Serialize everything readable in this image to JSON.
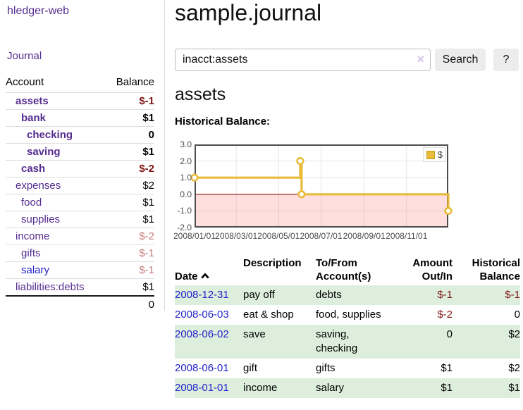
{
  "colors": {
    "link-purple": "#552d90",
    "link-blue": "#2323cc",
    "neg-dark": "#7f1414",
    "neg-light": "#c87c7c",
    "row-green": "#ddeedd",
    "chart-gold": "#e8bb39",
    "chart-pink-base": "#ff4646",
    "zero-red": "#8b1414",
    "grid-gray": "#e6e6e6",
    "chart-border": "#4d4d4d",
    "button-gray": "#ececec"
  },
  "sidebar": {
    "brand": "hledger-web",
    "nav": [
      {
        "label": "Journal"
      }
    ],
    "table_headers": {
      "account": "Account",
      "balance": "Balance"
    },
    "accounts": [
      {
        "name": "assets",
        "balance": "$-1",
        "level": 1,
        "bold": true,
        "neg": "dark"
      },
      {
        "name": "bank",
        "balance": "$1",
        "level": 2,
        "bold": true,
        "neg": ""
      },
      {
        "name": "checking",
        "balance": "0",
        "level": 3,
        "bold": true,
        "neg": ""
      },
      {
        "name": "saving",
        "balance": "$1",
        "level": 3,
        "bold": true,
        "neg": ""
      },
      {
        "name": "cash",
        "balance": "$-2",
        "level": 2,
        "bold": true,
        "neg": "dark"
      },
      {
        "name": "expenses",
        "balance": "$2",
        "level": 1,
        "bold": false,
        "neg": ""
      },
      {
        "name": "food",
        "balance": "$1",
        "level": 2,
        "bold": false,
        "neg": ""
      },
      {
        "name": "supplies",
        "balance": "$1",
        "level": 2,
        "bold": false,
        "neg": ""
      },
      {
        "name": "income",
        "balance": "$-2",
        "level": 1,
        "bold": false,
        "neg": "light"
      },
      {
        "name": "gifts",
        "balance": "$-1",
        "level": 2,
        "bold": false,
        "neg": "light"
      },
      {
        "name": "salary",
        "balance": "$-1",
        "level": 2,
        "bold": false,
        "neg": "light",
        "link": "blue"
      },
      {
        "name": "liabilities:debts",
        "balance": "$1",
        "level": 1,
        "bold": false,
        "neg": ""
      }
    ],
    "total": "0"
  },
  "header": {
    "title": "sample.journal"
  },
  "search": {
    "value": "inacct:assets",
    "clear_icon": "×",
    "button": "Search",
    "help_button": "?"
  },
  "page": {
    "heading": "assets",
    "chart_label": "Historical Balance:"
  },
  "chart_data": {
    "type": "line",
    "step": true,
    "title": "Historical Balance:",
    "series": [
      {
        "name": "$",
        "color": "#e8bb39",
        "points": [
          {
            "date": "2008-01-01",
            "value": 1
          },
          {
            "date": "2008-06-01",
            "value": 2
          },
          {
            "date": "2008-06-03",
            "value": 0
          },
          {
            "date": "2008-12-31",
            "value": -1
          }
        ]
      }
    ],
    "xrange": [
      "2008-01-01",
      "2008-12-31"
    ],
    "ylim": [
      -2,
      3
    ],
    "yticks": [
      3,
      2,
      1,
      0,
      -1,
      -2
    ],
    "ytick_labels": [
      "3.0",
      "2.0",
      "1.0",
      "0.0",
      "-1.0",
      "-2.0"
    ],
    "xticks": [
      "2008-01-01",
      "2008-03-01",
      "2008-05-01",
      "2008-07-01",
      "2008-09-01",
      "2008-11-01"
    ],
    "xtick_labels": [
      "2008/01/01",
      "2008/03/01",
      "2008/05/01",
      "2008/07/01",
      "2008/09/01",
      "2008/11/01"
    ],
    "legend": {
      "position": "top-right",
      "entries": [
        {
          "label": "$",
          "color": "#e8bb39"
        }
      ]
    },
    "negative_region": true,
    "zero_line": true,
    "grid": true
  },
  "register": {
    "headers": {
      "date": "Date",
      "sort_icon": "chevron-up",
      "description": "Description",
      "accounts": "To/From\nAccount(s)",
      "amount": "Amount\nOut/In",
      "balance": "Historical\nBalance"
    },
    "rows": [
      {
        "date": "2008-12-31",
        "description": "pay off",
        "accounts": "debts",
        "amount": "$-1",
        "amount_negative": true,
        "balance": "$-1",
        "balance_negative": true
      },
      {
        "date": "2008-06-03",
        "description": "eat & shop",
        "accounts": "food, supplies",
        "amount": "$-2",
        "amount_negative": true,
        "balance": "0",
        "balance_negative": false
      },
      {
        "date": "2008-06-02",
        "description": "save",
        "accounts": "saving,\nchecking",
        "amount": "0",
        "amount_negative": false,
        "balance": "$2",
        "balance_negative": false
      },
      {
        "date": "2008-06-01",
        "description": "gift",
        "accounts": "gifts",
        "amount": "$1",
        "amount_negative": false,
        "balance": "$2",
        "balance_negative": false
      },
      {
        "date": "2008-01-01",
        "description": "income",
        "accounts": "salary",
        "amount": "$1",
        "amount_negative": false,
        "balance": "$1",
        "balance_negative": false
      }
    ]
  }
}
